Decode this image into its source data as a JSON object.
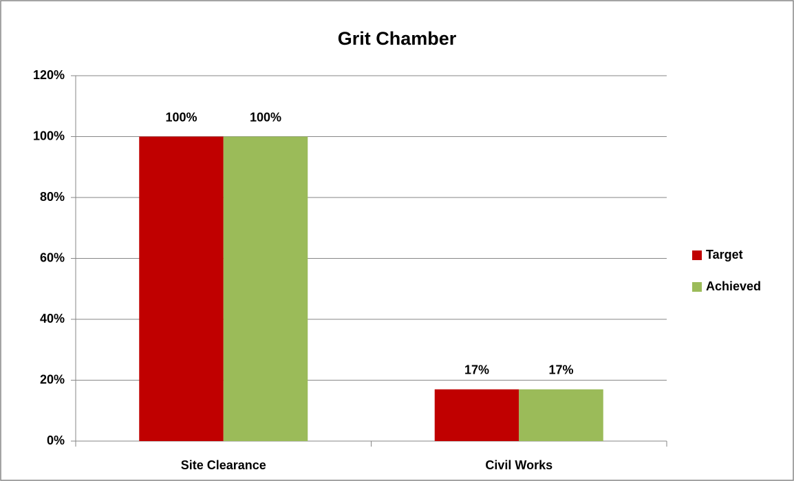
{
  "chart_data": {
    "type": "bar",
    "title": "Grit Chamber",
    "categories": [
      "Site Clearance",
      "Civil Works"
    ],
    "series": [
      {
        "name": "Target",
        "color": "#c00000",
        "values": [
          100,
          17
        ],
        "value_labels": [
          "100%",
          "17%"
        ]
      },
      {
        "name": "Achieved",
        "color": "#9bbb59",
        "values": [
          100,
          17
        ],
        "value_labels": [
          "100%",
          "17%"
        ]
      }
    ],
    "ylim": [
      0,
      120
    ],
    "yticks": [
      {
        "value": 0,
        "label": "0%"
      },
      {
        "value": 20,
        "label": "20%"
      },
      {
        "value": 40,
        "label": "40%"
      },
      {
        "value": 60,
        "label": "60%"
      },
      {
        "value": 80,
        "label": "80%"
      },
      {
        "value": 100,
        "label": "100%"
      },
      {
        "value": 120,
        "label": "120%"
      }
    ],
    "grid": true,
    "legend": "right"
  }
}
